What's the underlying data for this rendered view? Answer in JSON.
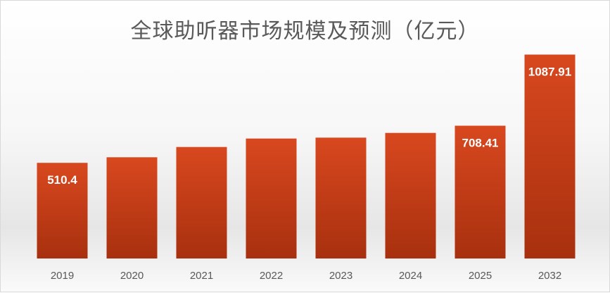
{
  "chart_data": {
    "type": "bar",
    "title": "全球助听器市场规模及预测（亿元）",
    "xlabel": "",
    "ylabel": "",
    "categories": [
      "2019",
      "2020",
      "2021",
      "2022",
      "2023",
      "2024",
      "2025",
      "2032"
    ],
    "values": [
      510.4,
      540,
      595,
      640,
      645,
      670,
      708.41,
      1087.91
    ],
    "data_labels": [
      "510.4",
      "",
      "",
      "",
      "",
      "",
      "708.41",
      "1087.91"
    ],
    "ylim": [
      0,
      1150
    ],
    "grid": false,
    "legend": "none",
    "bar_color_top": "#d8481f",
    "bar_color_bottom": "#a8300e",
    "label_color": "#ffffff",
    "tick_color": "#595959"
  }
}
